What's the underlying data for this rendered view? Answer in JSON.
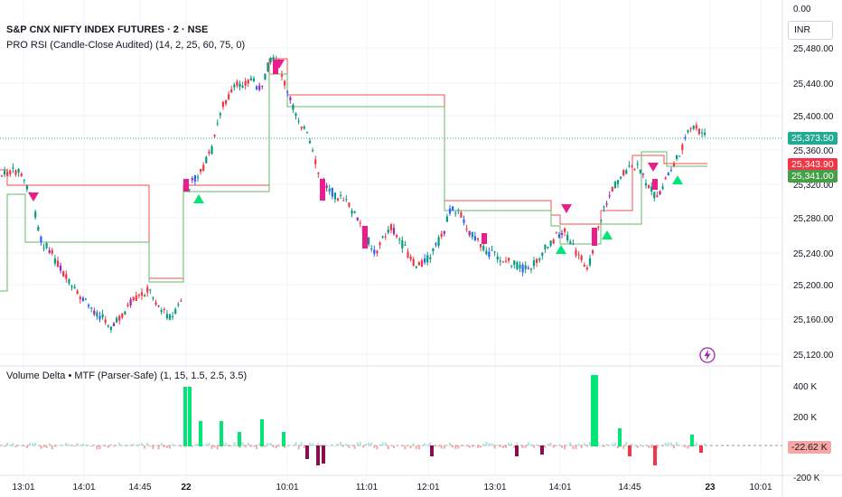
{
  "header": {
    "instrument": "S&P CNX NIFTY INDEX FUTURES · 2 · NSE",
    "indicator": "PRO RSI (Candle-Close Audited) (14, 2, 25, 60, 75, 0)",
    "volume_indicator": "Volume Delta • MTF (Parser-Safe) (1, 15, 1.5, 2.5, 3.5)"
  },
  "price_axis": {
    "top_label": "0.00",
    "currency": "INR",
    "ticks": [
      "25,480.00",
      "25,440.00",
      "25,400.00",
      "25,360.00",
      "25,320.00",
      "25,280.00",
      "25,240.00",
      "25,200.00",
      "25,160.00",
      "25,120.00"
    ]
  },
  "price_tags": {
    "last": "25,373.50",
    "upper": "25,343.90",
    "lower": "25,341.00",
    "colors": {
      "last": "#22ab94",
      "upper": "#f23645",
      "lower": "#43a047"
    }
  },
  "volume_axis": {
    "ticks": [
      "400 K",
      "200 K",
      "-200 K"
    ],
    "current": "-22.62 K",
    "current_color": "#f7a6a6"
  },
  "time_axis": [
    "13:01",
    "14:01",
    "14:45",
    "22",
    "10:01",
    "11:01",
    "12:01",
    "13:01",
    "14:01",
    "14:45",
    "23",
    "10:01"
  ],
  "colors": {
    "up": "#089981",
    "down": "#f23645",
    "signal_buy": "#00e676",
    "signal_sell": "#e91e8c",
    "delta_up": "#00e676",
    "delta_down": "#880e4f"
  },
  "icons": {
    "alert": "lightning-bolt-icon"
  }
}
